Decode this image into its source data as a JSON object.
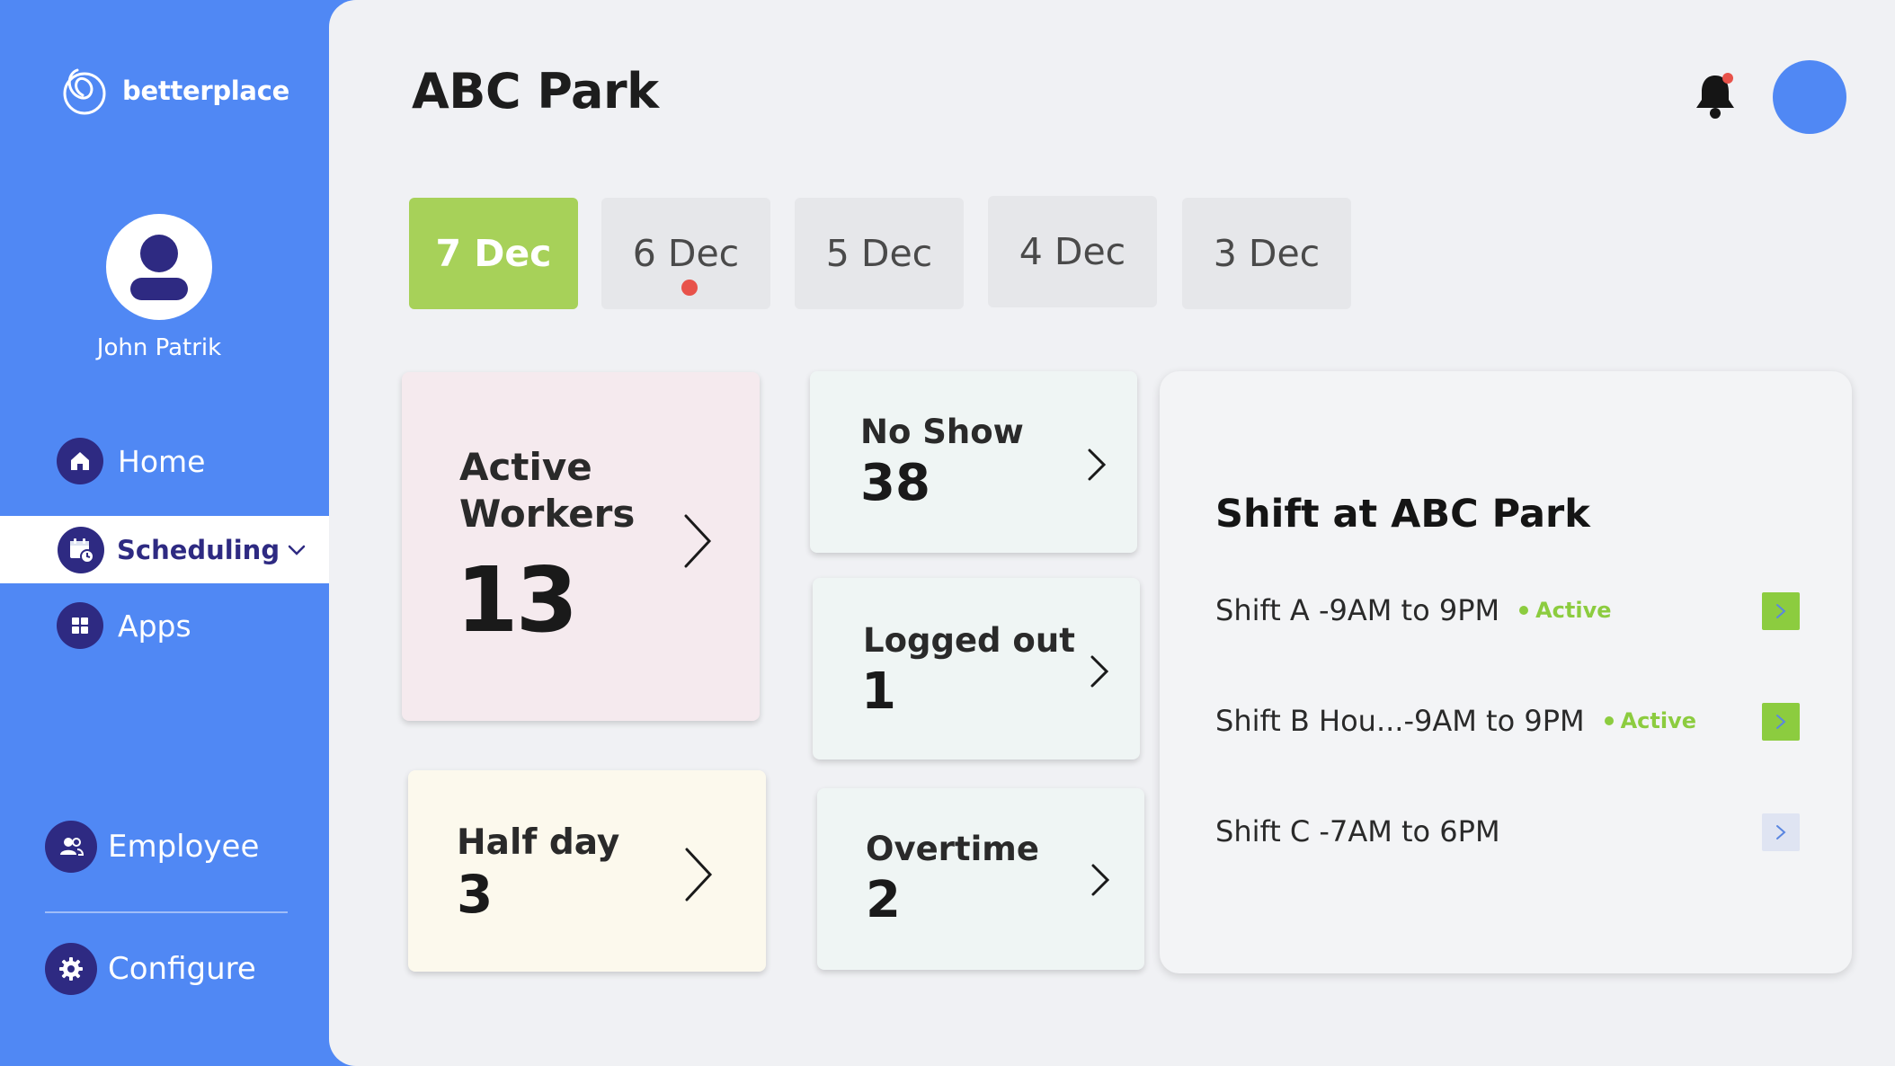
{
  "brand": {
    "name": "betterplace"
  },
  "user": {
    "name": "John Patrik"
  },
  "nav": {
    "home": "Home",
    "scheduling": "Scheduling",
    "apps": "Apps",
    "employee": "Employee",
    "configure": "Configure"
  },
  "page": {
    "title": "ABC Park"
  },
  "dates": [
    {
      "label": "7 Dec",
      "active": true
    },
    {
      "label": "6 Dec",
      "has_alert": true
    },
    {
      "label": "5 Dec"
    },
    {
      "label": "4 Dec"
    },
    {
      "label": "3 Dec"
    }
  ],
  "cards": {
    "active_workers": {
      "title": "Active Workers",
      "value": "13"
    },
    "half_day": {
      "title": "Half day",
      "value": "3"
    },
    "no_show": {
      "title": "No Show",
      "value": "38"
    },
    "logged_out": {
      "title": "Logged out",
      "value": "1"
    },
    "overtime": {
      "title": "Overtime",
      "value": "2"
    }
  },
  "shifts": {
    "title": "Shift at ABC Park",
    "items": [
      {
        "name": "Shift A -9AM to 9PM",
        "status": "Active"
      },
      {
        "name": "Shift B Hou...-9AM to 9PM",
        "status": "Active"
      },
      {
        "name": "Shift C -7AM to 6PM",
        "status": ""
      }
    ]
  },
  "colors": {
    "sidebar": "#5088f4",
    "nav_icon_bg": "#2e2a82",
    "active_date": "#a7d159",
    "status_active": "#8ccc3f",
    "alert_dot": "#e8524a"
  }
}
